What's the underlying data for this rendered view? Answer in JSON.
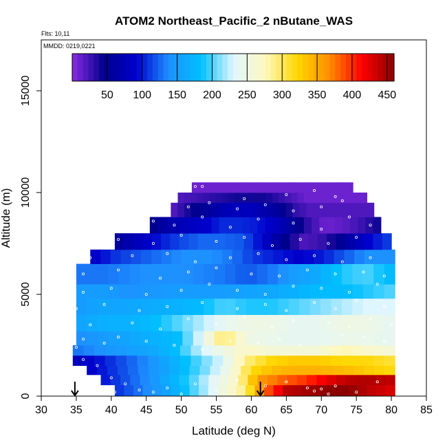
{
  "chart_data": {
    "type": "heatmap",
    "title": "ATOM2 Northeast_Pacific_2 nButane_WAS",
    "flights_label": "Flts: 10,11",
    "mmdd_label": "MMDD: 0219,0221",
    "xlabel": "Latitude (deg N)",
    "ylabel": "Altitude (m)",
    "xlim": [
      30,
      85
    ],
    "ylim": [
      0,
      17500
    ],
    "x_ticks": [
      "30",
      "35",
      "40",
      "45",
      "50",
      "55",
      "60",
      "65",
      "70",
      "75",
      "80",
      "85"
    ],
    "y_ticks": [
      "0",
      "5000",
      "10000",
      "15000"
    ],
    "colorbar": {
      "range": [
        0,
        460
      ],
      "ticks": [
        "50",
        "100",
        "150",
        "200",
        "250",
        "300",
        "350",
        "400",
        "450"
      ],
      "colors": [
        "#8a2be2",
        "#00008b",
        "#0000cd",
        "#1e90ff",
        "#00bfff",
        "#e0f6ff",
        "#fff8c0",
        "#ffd700",
        "#ff8c00",
        "#ff0000",
        "#8b0000"
      ]
    },
    "grid": false,
    "layers": [
      {
        "alt_range": [
          0,
          550
        ],
        "lat_range": [
          40.5,
          80.5
        ],
        "values": [
          110,
          130,
          150,
          180,
          215,
          255,
          290,
          380,
          440,
          450,
          460,
          460,
          440,
          430
        ]
      },
      {
        "alt_range": [
          550,
          1050
        ],
        "lat_range": [
          38.5,
          80.5
        ],
        "values": [
          100,
          120,
          140,
          170,
          200,
          240,
          270,
          360,
          380,
          395,
          420,
          440,
          445,
          440
        ]
      },
      {
        "alt_range": [
          1050,
          1500
        ],
        "lat_range": [
          36.5,
          80.5
        ],
        "values": [
          90,
          110,
          130,
          150,
          180,
          210,
          250,
          320,
          340,
          345,
          345,
          340,
          330,
          320
        ]
      },
      {
        "alt_range": [
          1500,
          2000
        ],
        "lat_range": [
          34.5,
          80.5
        ],
        "values": [
          80,
          100,
          120,
          140,
          170,
          200,
          230,
          290,
          320,
          330,
          330,
          320,
          320,
          310
        ]
      },
      {
        "alt_range": [
          2000,
          2500
        ],
        "lat_range": [
          34.5,
          80.5
        ],
        "values": [
          130,
          140,
          150,
          160,
          180,
          220,
          250,
          270,
          260,
          260,
          260,
          280,
          270,
          260
        ]
      },
      {
        "alt_range": [
          2500,
          3200
        ],
        "lat_range": [
          35,
          80.5
        ],
        "values": [
          140,
          150,
          160,
          170,
          180,
          230,
          300,
          250,
          245,
          240,
          240,
          245,
          245,
          240
        ]
      },
      {
        "alt_range": [
          3200,
          4000
        ],
        "lat_range": [
          35,
          80.5
        ],
        "values": [
          160,
          170,
          170,
          180,
          200,
          220,
          240,
          250,
          250,
          240,
          240,
          250,
          250,
          240
        ]
      },
      {
        "alt_range": [
          4000,
          4800
        ],
        "lat_range": [
          35,
          80.5
        ],
        "values": [
          150,
          160,
          160,
          165,
          170,
          180,
          200,
          190,
          190,
          200,
          210,
          220,
          230,
          230
        ]
      },
      {
        "alt_range": [
          4800,
          5500
        ],
        "lat_range": [
          35,
          80.5
        ],
        "values": [
          150,
          150,
          140,
          145,
          150,
          150,
          150,
          155,
          160,
          170,
          180,
          180,
          190,
          200
        ]
      },
      {
        "alt_range": [
          5500,
          6500
        ],
        "lat_range": [
          35,
          80.5
        ],
        "values": [
          130,
          130,
          135,
          140,
          140,
          135,
          130,
          120,
          130,
          150,
          165,
          190,
          200,
          180
        ]
      },
      {
        "alt_range": [
          6500,
          7200
        ],
        "lat_range": [
          37,
          80.5
        ],
        "values": [
          90,
          110,
          120,
          130,
          140,
          140,
          130,
          110,
          100,
          90,
          100,
          120,
          140,
          140
        ]
      },
      {
        "alt_range": [
          7200,
          8000
        ],
        "lat_range": [
          40.5,
          80
        ],
        "values": [
          60,
          80,
          100,
          115,
          125,
          125,
          120,
          90,
          50,
          20,
          30,
          60,
          90,
          110
        ]
      },
      {
        "alt_range": [
          8000,
          8800
        ],
        "lat_range": [
          45.5,
          78.5
        ],
        "values": [
          50,
          70,
          80,
          90,
          105,
          105,
          100,
          85,
          60,
          30,
          10,
          15,
          25,
          40
        ]
      },
      {
        "alt_range": [
          8800,
          9500
        ],
        "lat_range": [
          48.5,
          77.5
        ],
        "values": [
          20,
          40,
          55,
          70,
          80,
          80,
          70,
          55,
          30,
          20,
          20,
          20,
          20,
          20
        ]
      },
      {
        "alt_range": [
          9500,
          10000
        ],
        "lat_range": [
          49.5,
          76.5
        ],
        "values": [
          20,
          25,
          30,
          35,
          40,
          40,
          40,
          30,
          20,
          10,
          10,
          10,
          10,
          10
        ]
      },
      {
        "alt_range": [
          10000,
          10500
        ],
        "lat_range": [
          51.5,
          74.5
        ],
        "values": [
          10,
          10,
          10,
          10,
          10,
          10,
          10,
          10,
          10,
          10,
          10,
          10,
          10,
          10
        ]
      }
    ],
    "observations": [
      [
        35,
        2400
      ],
      [
        36,
        1800
      ],
      [
        38,
        1500
      ],
      [
        40,
        900
      ],
      [
        42,
        600
      ],
      [
        44,
        300
      ],
      [
        46,
        200
      ],
      [
        40.5,
        200
      ],
      [
        48,
        400
      ],
      [
        52,
        600
      ],
      [
        50,
        100
      ],
      [
        55,
        300
      ],
      [
        58,
        800
      ],
      [
        62,
        500
      ],
      [
        65,
        700
      ],
      [
        68,
        400
      ],
      [
        70,
        350
      ],
      [
        72,
        500
      ],
      [
        75,
        200
      ],
      [
        78,
        700
      ],
      [
        69,
        250
      ],
      [
        71,
        100
      ],
      [
        36,
        2800
      ],
      [
        39,
        2600
      ],
      [
        41,
        2900
      ],
      [
        45,
        2700
      ],
      [
        49,
        2500
      ],
      [
        53,
        2300
      ],
      [
        57,
        2700
      ],
      [
        61,
        2600
      ],
      [
        64,
        2800
      ],
      [
        67,
        2500
      ],
      [
        73,
        3000
      ],
      [
        76,
        2900
      ],
      [
        79,
        2700
      ],
      [
        37,
        3500
      ],
      [
        43,
        3600
      ],
      [
        47,
        3300
      ],
      [
        51,
        3800
      ],
      [
        55,
        3500
      ],
      [
        59,
        3900
      ],
      [
        63,
        3400
      ],
      [
        66,
        3700
      ],
      [
        71,
        3600
      ],
      [
        74,
        3400
      ],
      [
        77,
        3800
      ],
      [
        80,
        3500
      ],
      [
        35,
        4300
      ],
      [
        39,
        4500
      ],
      [
        44,
        4200
      ],
      [
        48,
        4400
      ],
      [
        53,
        4600
      ],
      [
        58,
        4300
      ],
      [
        62,
        4500
      ],
      [
        65,
        4200
      ],
      [
        69,
        4600
      ],
      [
        72,
        4300
      ],
      [
        75,
        4700
      ],
      [
        79,
        4400
      ],
      [
        36,
        5100
      ],
      [
        40,
        5300
      ],
      [
        45,
        5000
      ],
      [
        50,
        5200
      ],
      [
        54,
        5500
      ],
      [
        58,
        5200
      ],
      [
        62,
        5000
      ],
      [
        66,
        5400
      ],
      [
        70,
        5300
      ],
      [
        74,
        5100
      ],
      [
        78,
        5500
      ],
      [
        36,
        6000
      ],
      [
        41,
        6200
      ],
      [
        47,
        5800
      ],
      [
        51,
        6100
      ],
      [
        55,
        6300
      ],
      [
        60,
        6000
      ],
      [
        64,
        5900
      ],
      [
        68,
        6200
      ],
      [
        72,
        6000
      ],
      [
        76,
        6100
      ],
      [
        79,
        5900
      ],
      [
        37,
        6800
      ],
      [
        43,
        6900
      ],
      [
        48,
        7000
      ],
      [
        52,
        6600
      ],
      [
        57,
        6800
      ],
      [
        61,
        7000
      ],
      [
        65,
        6700
      ],
      [
        69,
        6900
      ],
      [
        73,
        6600
      ],
      [
        77,
        6800
      ],
      [
        41,
        7700
      ],
      [
        46,
        7500
      ],
      [
        50,
        7900
      ],
      [
        55,
        7600
      ],
      [
        59,
        7800
      ],
      [
        63,
        7400
      ],
      [
        67,
        7700
      ],
      [
        71,
        7500
      ],
      [
        75,
        7800
      ],
      [
        46,
        8600
      ],
      [
        49,
        8400
      ],
      [
        53,
        8800
      ],
      [
        57,
        8300
      ],
      [
        61,
        8700
      ],
      [
        66,
        8500
      ],
      [
        70,
        8200
      ],
      [
        74,
        8800
      ],
      [
        77,
        8400
      ],
      [
        51,
        9300
      ],
      [
        54,
        9500
      ],
      [
        58,
        9200
      ],
      [
        62,
        9400
      ],
      [
        66,
        9100
      ],
      [
        70,
        9300
      ],
      [
        73,
        9600
      ],
      [
        52,
        10300
      ],
      [
        53,
        10300
      ],
      [
        59,
        9700
      ],
      [
        65,
        9900
      ],
      [
        69,
        10100
      ],
      [
        72,
        9800
      ]
    ],
    "arrows": [
      34.8,
      61.3
    ]
  }
}
